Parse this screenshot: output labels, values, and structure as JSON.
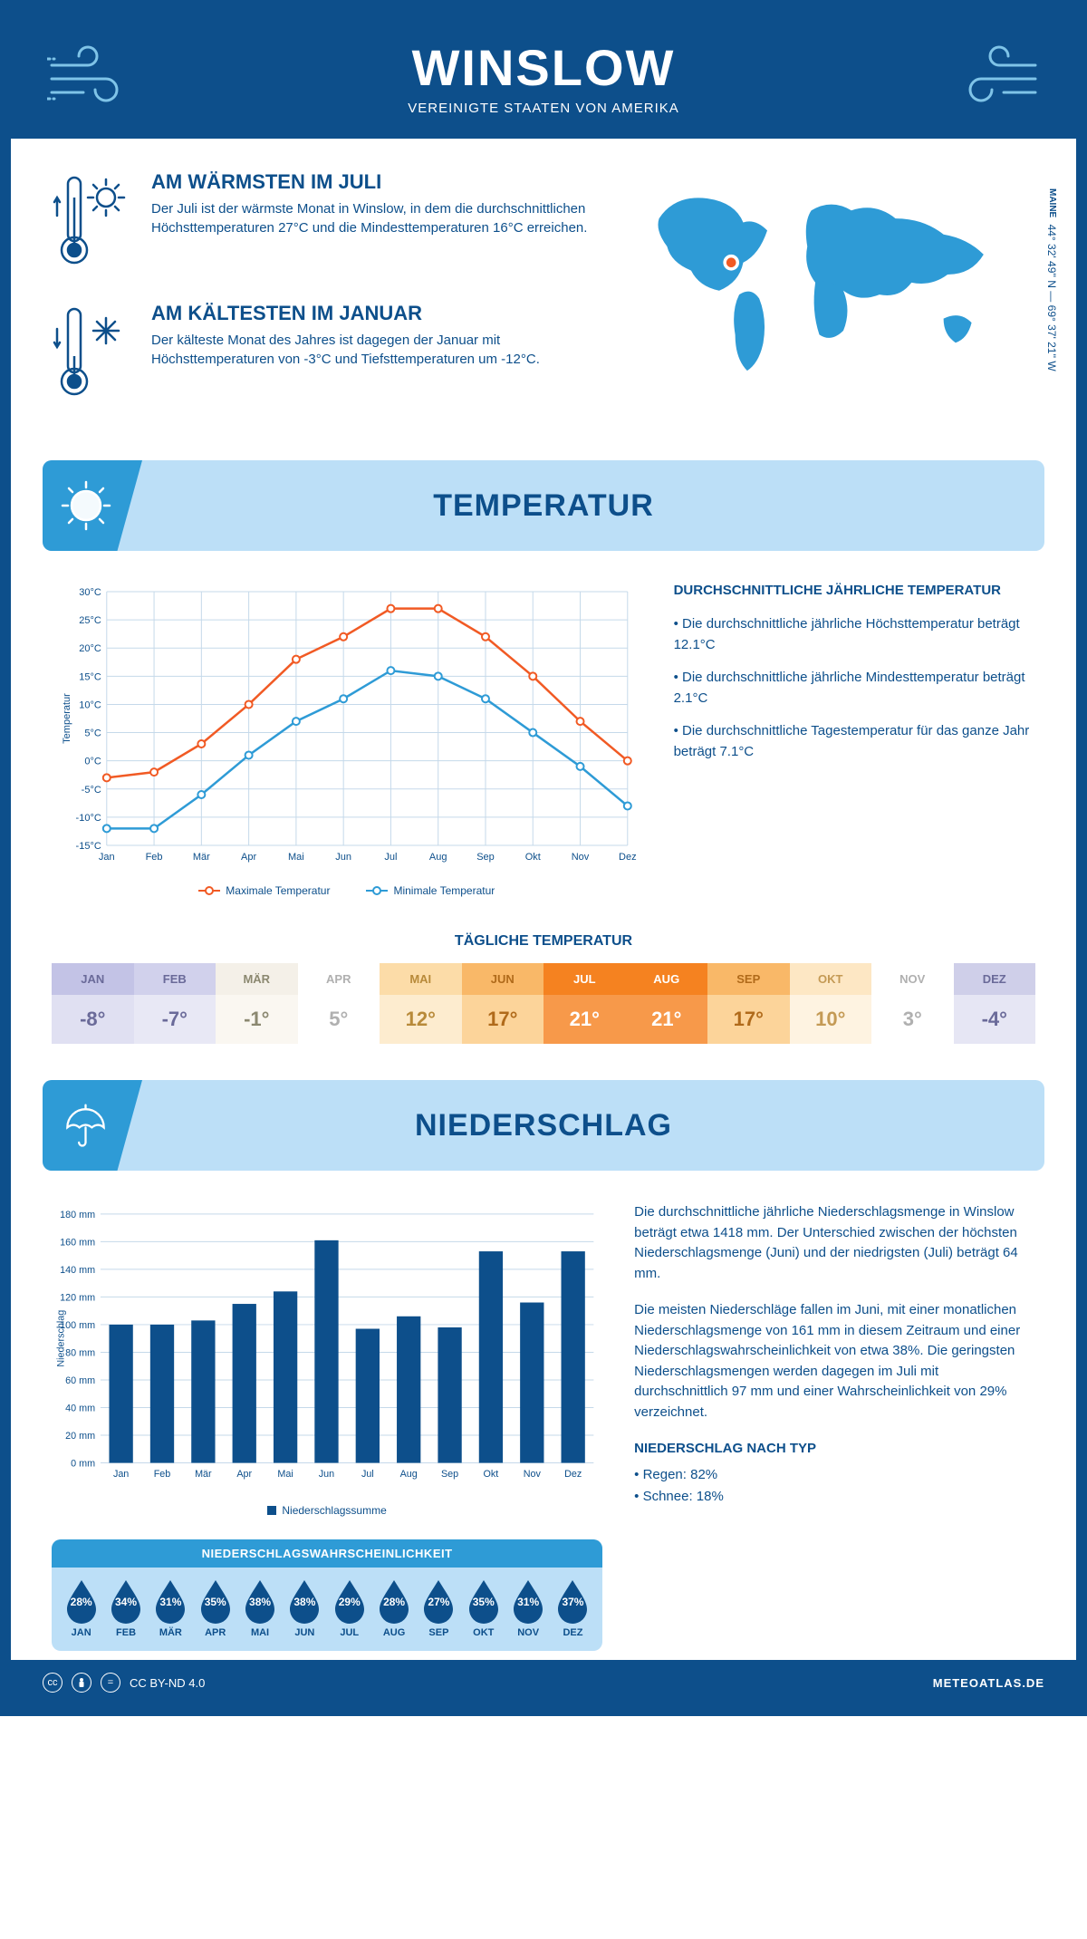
{
  "header": {
    "city": "WINSLOW",
    "country": "VEREINIGTE STAATEN VON AMERIKA"
  },
  "coords": {
    "state": "MAINE",
    "lat": "44° 32' 49'' N",
    "lon": "69° 37' 21'' W"
  },
  "warmest": {
    "title": "AM WÄRMSTEN IM JULI",
    "text": "Der Juli ist der wärmste Monat in Winslow, in dem die durchschnittlichen Höchsttemperaturen 27°C und die Mindesttemperaturen 16°C erreichen."
  },
  "coldest": {
    "title": "AM KÄLTESTEN IM JANUAR",
    "text": "Der kälteste Monat des Jahres ist dagegen der Januar mit Höchsttemperaturen von -3°C und Tiefsttemperaturen um -12°C."
  },
  "section_temp": "TEMPERATUR",
  "section_precip": "NIEDERSCHLAG",
  "temp_chart": {
    "type": "line",
    "months": [
      "Jan",
      "Feb",
      "Mär",
      "Apr",
      "Mai",
      "Jun",
      "Jul",
      "Aug",
      "Sep",
      "Okt",
      "Nov",
      "Dez"
    ],
    "max_series": [
      -3,
      -2,
      3,
      10,
      18,
      22,
      27,
      27,
      22,
      15,
      7,
      0
    ],
    "min_series": [
      -12,
      -12,
      -6,
      1,
      7,
      11,
      16,
      15,
      11,
      5,
      -1,
      -8
    ],
    "max_color": "#f15a24",
    "min_color": "#2e9bd6",
    "ylim": [
      -15,
      30
    ],
    "ytick_step": 5,
    "ylabel": "Temperatur",
    "grid_color": "#c5d9ea",
    "legend_max": "Maximale Temperatur",
    "legend_min": "Minimale Temperatur"
  },
  "temp_text": {
    "heading": "DURCHSCHNITTLICHE JÄHRLICHE TEMPERATUR",
    "b1": "• Die durchschnittliche jährliche Höchsttemperatur beträgt 12.1°C",
    "b2": "• Die durchschnittliche jährliche Mindesttemperatur beträgt 2.1°C",
    "b3": "• Die durchschnittliche Tagestemperatur für das ganze Jahr beträgt 7.1°C"
  },
  "daily": {
    "title": "TÄGLICHE TEMPERATUR",
    "months": [
      "JAN",
      "FEB",
      "MÄR",
      "APR",
      "MAI",
      "JUN",
      "JUL",
      "AUG",
      "SEP",
      "OKT",
      "NOV",
      "DEZ"
    ],
    "values": [
      "-8°",
      "-7°",
      "-1°",
      "5°",
      "12°",
      "17°",
      "21°",
      "21°",
      "17°",
      "10°",
      "3°",
      "-4°"
    ],
    "head_colors": [
      "#c3c3e6",
      "#d1d1ec",
      "#f4f0e8",
      "#ffffff",
      "#fcdca8",
      "#f9b868",
      "#f58220",
      "#f58220",
      "#f9b868",
      "#fde7c4",
      "#ffffff",
      "#cfcfe9"
    ],
    "val_colors": [
      "#e0e0f2",
      "#e8e8f5",
      "#faf7f1",
      "#ffffff",
      "#fdeccf",
      "#fcd49a",
      "#f7994a",
      "#f7994a",
      "#fcd49a",
      "#fef3e1",
      "#ffffff",
      "#e6e6f4"
    ],
    "text_colors": [
      "#6a6a99",
      "#6a6a99",
      "#8b8870",
      "#b0b0b0",
      "#b88a3a",
      "#b06a1a",
      "#ffffff",
      "#ffffff",
      "#b06a1a",
      "#c49a55",
      "#b0b0b0",
      "#6a6a99"
    ]
  },
  "precip_chart": {
    "type": "bar",
    "months": [
      "Jan",
      "Feb",
      "Mär",
      "Apr",
      "Mai",
      "Jun",
      "Jul",
      "Aug",
      "Sep",
      "Okt",
      "Nov",
      "Dez"
    ],
    "values": [
      100,
      100,
      103,
      115,
      124,
      161,
      97,
      106,
      98,
      153,
      116,
      153
    ],
    "bar_color": "#0d4f8b",
    "ylim": [
      0,
      180
    ],
    "ytick_step": 20,
    "ylabel": "Niederschlag",
    "legend": "Niederschlagssumme",
    "grid_color": "#c5d9ea"
  },
  "precip_text": {
    "p1": "Die durchschnittliche jährliche Niederschlagsmenge in Winslow beträgt etwa 1418 mm. Der Unterschied zwischen der höchsten Niederschlagsmenge (Juni) und der niedrigsten (Juli) beträgt 64 mm.",
    "p2": "Die meisten Niederschläge fallen im Juni, mit einer monatlichen Niederschlagsmenge von 161 mm in diesem Zeitraum und einer Niederschlagswahrscheinlichkeit von etwa 38%. Die geringsten Niederschlagsmengen werden dagegen im Juli mit durchschnittlich 97 mm und einer Wahrscheinlichkeit von 29% verzeichnet.",
    "type_head": "NIEDERSCHLAG NACH TYP",
    "rain": "• Regen: 82%",
    "snow": "• Schnee: 18%"
  },
  "prob": {
    "title": "NIEDERSCHLAGSWAHRSCHEINLICHKEIT",
    "months": [
      "JAN",
      "FEB",
      "MÄR",
      "APR",
      "MAI",
      "JUN",
      "JUL",
      "AUG",
      "SEP",
      "OKT",
      "NOV",
      "DEZ"
    ],
    "values": [
      "28%",
      "34%",
      "31%",
      "35%",
      "38%",
      "38%",
      "29%",
      "28%",
      "27%",
      "35%",
      "31%",
      "37%"
    ],
    "drop_color": "#0d4f8b"
  },
  "footer": {
    "license": "CC BY-ND 4.0",
    "site": "METEOATLAS.DE"
  }
}
